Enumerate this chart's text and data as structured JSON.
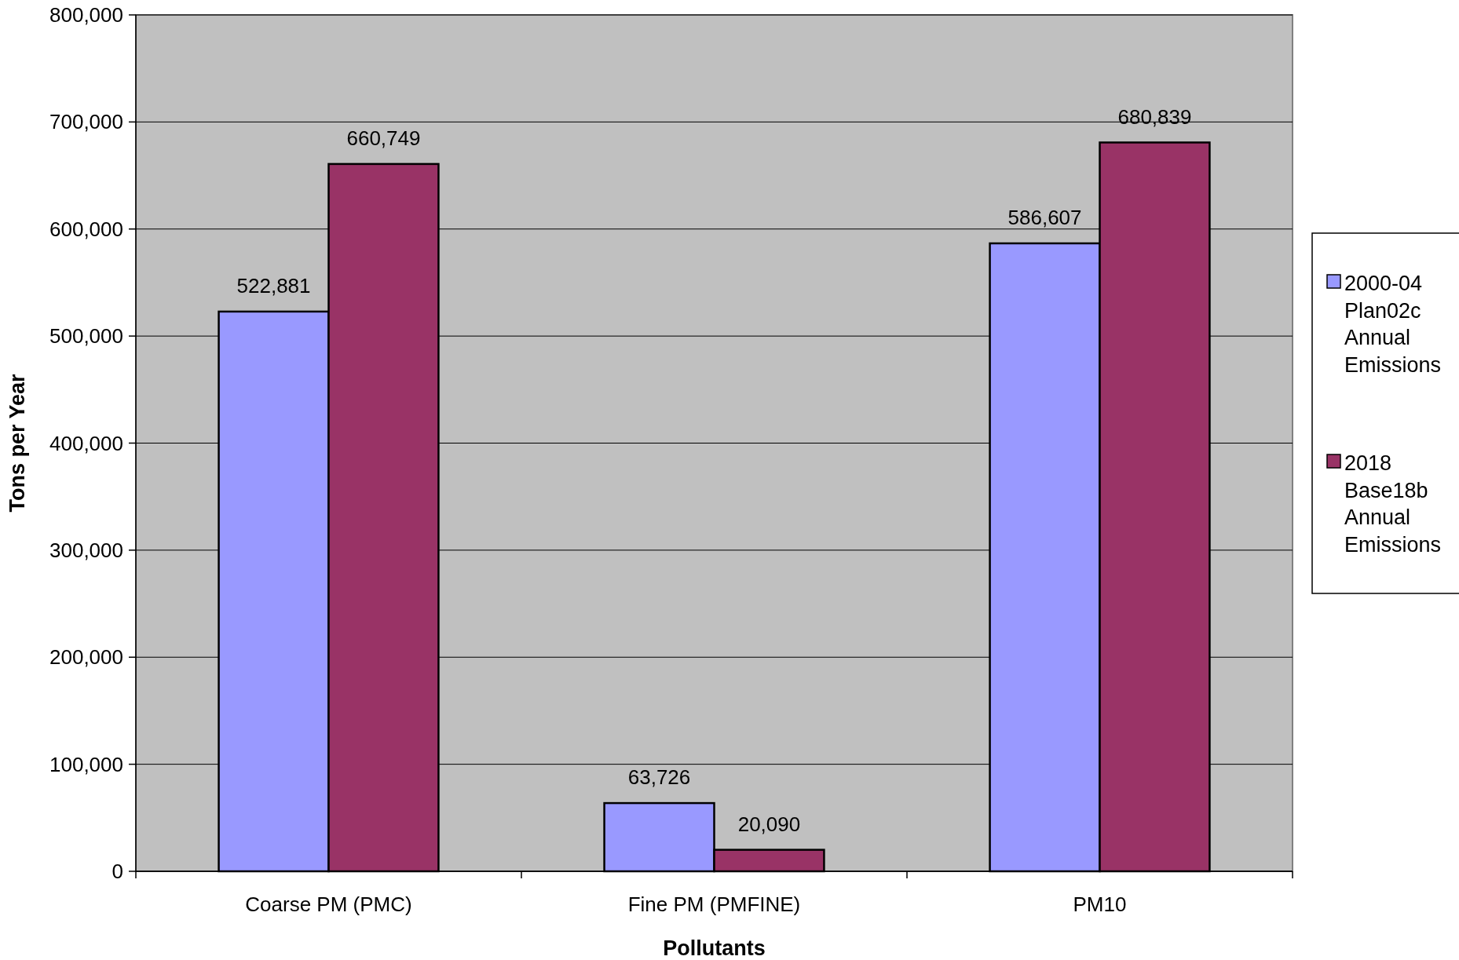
{
  "chart_data": {
    "type": "bar",
    "xlabel": "Pollutants",
    "ylabel": "Tons per Year",
    "categories": [
      "Coarse PM (PMC)",
      "Fine PM (PMFINE)",
      "PM10"
    ],
    "series": [
      {
        "name": "2000-04 Plan02c Annual Emissions",
        "color": "#9999ff",
        "values": [
          522881,
          63726,
          586607
        ],
        "value_labels": [
          "522,881",
          "63,726",
          "586,607"
        ]
      },
      {
        "name": "2018 Base18b Annual Emissions",
        "color": "#993366",
        "values": [
          660749,
          20090,
          680839
        ],
        "value_labels": [
          "660,749",
          "20,090",
          "680,839"
        ]
      }
    ],
    "ylim": [
      0,
      800000
    ],
    "yticks": [
      {
        "value": 0,
        "label": "0"
      },
      {
        "value": 100000,
        "label": "100,000"
      },
      {
        "value": 200000,
        "label": "200,000"
      },
      {
        "value": 300000,
        "label": "300,000"
      },
      {
        "value": 400000,
        "label": "400,000"
      },
      {
        "value": 500000,
        "label": "500,000"
      },
      {
        "value": 600000,
        "label": "600,000"
      },
      {
        "value": 700000,
        "label": "700,000"
      },
      {
        "value": 800000,
        "label": "800,000"
      }
    ],
    "grid": "y",
    "legend": "right"
  }
}
